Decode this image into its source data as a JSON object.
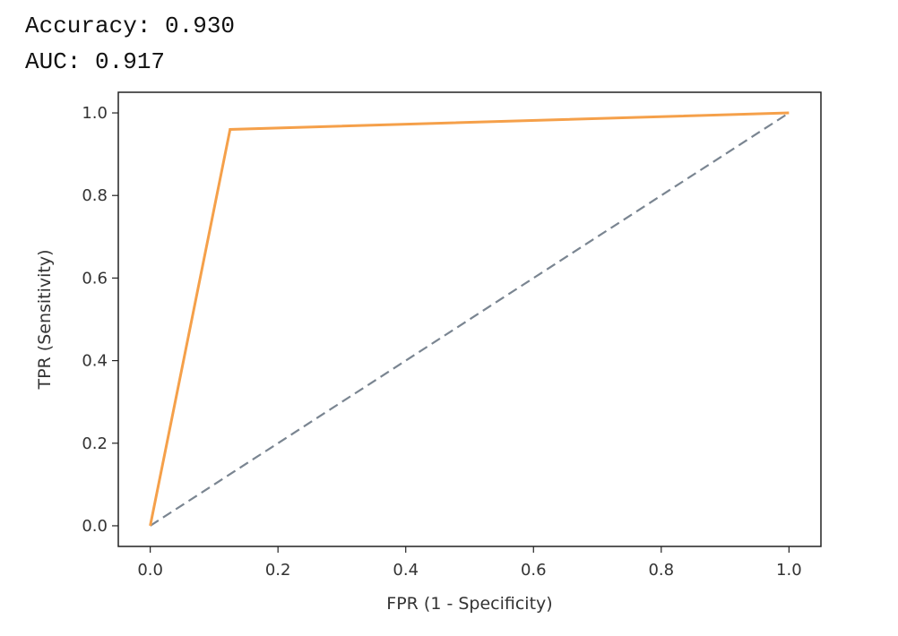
{
  "output": {
    "accuracy_line": "Accuracy: 0.930",
    "auc_line": "AUC: 0.917"
  },
  "chart_data": {
    "type": "line",
    "title": "",
    "xlabel": "FPR (1 - Specificity)",
    "ylabel": "TPR (Sensitivity)",
    "xlim": [
      -0.05,
      1.05
    ],
    "ylim": [
      -0.05,
      1.05
    ],
    "xticks": [
      0.0,
      0.2,
      0.4,
      0.6,
      0.8,
      1.0
    ],
    "yticks": [
      0.0,
      0.2,
      0.4,
      0.6,
      0.8,
      1.0
    ],
    "xtick_labels": [
      "0.0",
      "0.2",
      "0.4",
      "0.6",
      "0.8",
      "1.0"
    ],
    "ytick_labels": [
      "0.0",
      "0.2",
      "0.4",
      "0.6",
      "0.8",
      "1.0"
    ],
    "grid": false,
    "legend": "none",
    "series": [
      {
        "x": [
          0.0,
          0.125,
          1.0
        ],
        "y": [
          0.0,
          0.96,
          1.0
        ],
        "color": "#f5a04a",
        "style": "solid"
      },
      {
        "x": [
          0.0,
          1.0
        ],
        "y": [
          0.0,
          1.0
        ],
        "color": "#7a8591",
        "style": "dashed"
      }
    ]
  }
}
